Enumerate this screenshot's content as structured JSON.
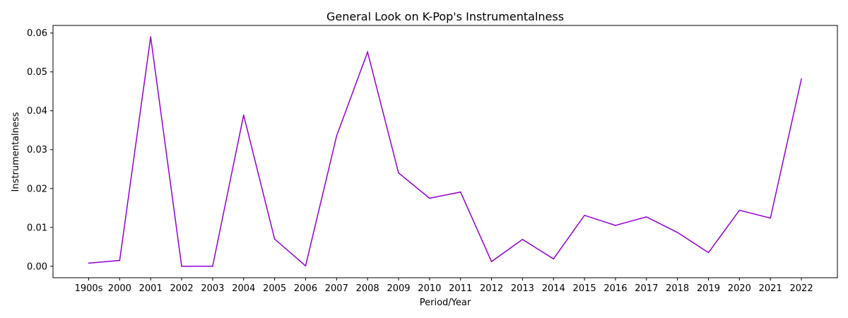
{
  "chart_data": {
    "type": "line",
    "title": "General Look on K-Pop's Instrumentalness",
    "xlabel": "Period/Year",
    "ylabel": "Instrumentalness",
    "categories": [
      "1900s",
      "2000",
      "2001",
      "2002",
      "2003",
      "2004",
      "2005",
      "2006",
      "2007",
      "2008",
      "2009",
      "2010",
      "2011",
      "2012",
      "2013",
      "2014",
      "2015",
      "2016",
      "2017",
      "2018",
      "2019",
      "2020",
      "2021",
      "2022"
    ],
    "series": [
      {
        "values": [
          0.0008,
          0.0015,
          0.059,
          0.0,
          0.0,
          0.0389,
          0.007,
          0.0001,
          0.0335,
          0.0551,
          0.024,
          0.0175,
          0.0191,
          0.0012,
          0.0069,
          0.0019,
          0.0131,
          0.0105,
          0.0127,
          0.0087,
          0.0035,
          0.0144,
          0.0124,
          0.0482
        ],
        "color": "#9400d3"
      }
    ],
    "ylim": [
      -0.00295,
      0.06195
    ],
    "yticks": [
      "0.00",
      "0.01",
      "0.02",
      "0.03",
      "0.04",
      "0.05",
      "0.06"
    ],
    "ytick_values": [
      0,
      0.01,
      0.02,
      0.03,
      0.04,
      0.05,
      0.06
    ],
    "grid": false,
    "legend": false
  }
}
